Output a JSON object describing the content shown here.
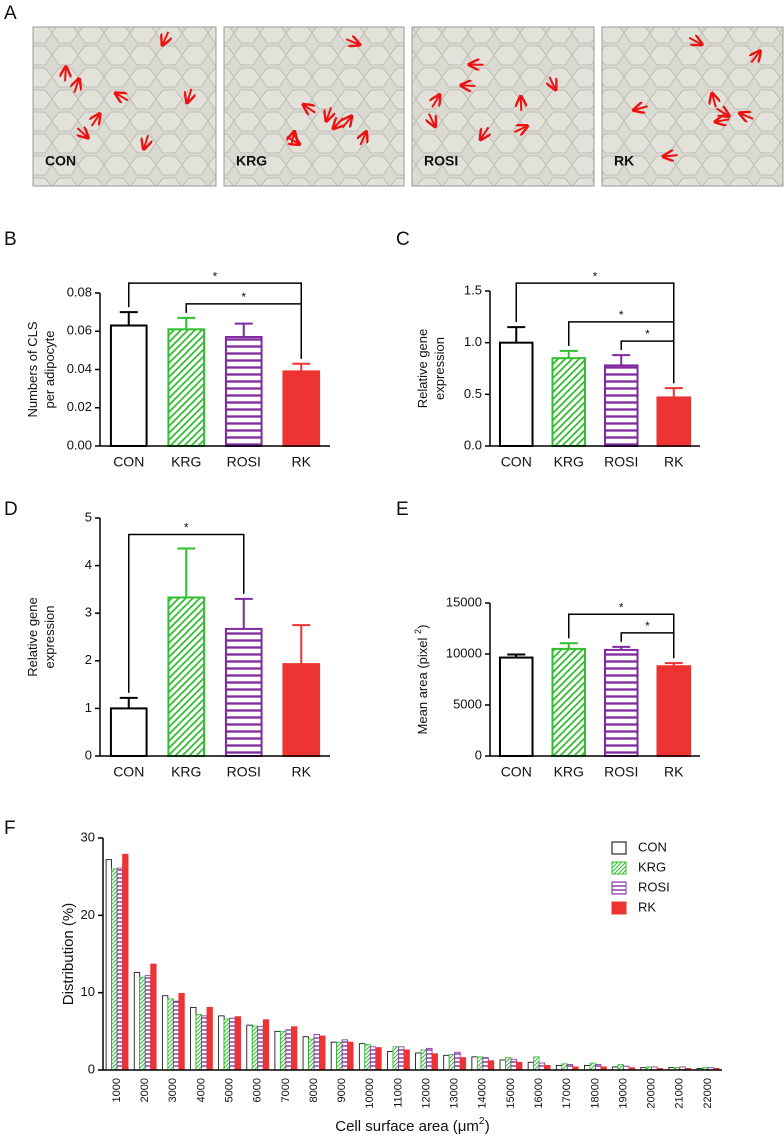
{
  "panel_a": {
    "letter": "A",
    "images": [
      "CON",
      "KRG",
      "ROSI",
      "RK"
    ]
  },
  "chart_data": [
    {
      "type": "bar",
      "panel": "B",
      "ylabel": [
        "Numbers of  CLS",
        "per adipocyte"
      ],
      "categories": [
        "CON",
        "KRG",
        "ROSI",
        "RK"
      ],
      "values": [
        0.063,
        0.061,
        0.057,
        0.039
      ],
      "errors": [
        0.007,
        0.006,
        0.007,
        0.004
      ],
      "colors": [
        "#000000",
        "#2fbf2f",
        "#7f2a9f",
        "#ee3333"
      ],
      "patterns": [
        "none",
        "diagonal",
        "horizontal",
        "solid"
      ],
      "ylim": [
        0,
        0.08
      ],
      "yticks": [
        {
          "value": 0,
          "label": "0.00"
        },
        {
          "value": 0.02,
          "label": "0.02"
        },
        {
          "value": 0.04,
          "label": "0.04"
        },
        {
          "value": 0.06,
          "label": "0.06"
        },
        {
          "value": 0.08,
          "label": "0.08"
        }
      ],
      "significance": [
        {
          "between": [
            "CON",
            "RK"
          ],
          "label": "*"
        },
        {
          "between": [
            "KRG",
            "RK"
          ],
          "label": "*"
        }
      ]
    },
    {
      "type": "bar",
      "panel": "C",
      "ylabel": [
        "Relative gene",
        "expression"
      ],
      "categories": [
        "CON",
        "KRG",
        "ROSI",
        "RK"
      ],
      "values": [
        1.0,
        0.85,
        0.78,
        0.47
      ],
      "errors": [
        0.15,
        0.07,
        0.1,
        0.09
      ],
      "colors": [
        "#000000",
        "#2fbf2f",
        "#7f2a9f",
        "#ee3333"
      ],
      "patterns": [
        "none",
        "diagonal",
        "horizontal",
        "solid"
      ],
      "ylim": [
        0,
        1.5
      ],
      "yticks": [
        {
          "value": 0,
          "label": "0.0"
        },
        0.5,
        {
          "value": 1,
          "label": "1.0"
        },
        1.5
      ],
      "significance": [
        {
          "between": [
            "CON",
            "RK"
          ],
          "label": "*"
        },
        {
          "between": [
            "KRG",
            "RK"
          ],
          "label": "*"
        },
        {
          "between": [
            "ROSI",
            "RK"
          ],
          "label": "*"
        }
      ]
    },
    {
      "type": "bar",
      "panel": "D",
      "ylabel": [
        "Relative gene",
        "expression"
      ],
      "categories": [
        "CON",
        "KRG",
        "ROSI",
        "RK"
      ],
      "values": [
        1.0,
        3.33,
        2.67,
        1.93
      ],
      "errors": [
        0.22,
        1.03,
        0.63,
        0.82
      ],
      "colors": [
        "#000000",
        "#2fbf2f",
        "#7f2a9f",
        "#ee3333"
      ],
      "patterns": [
        "none",
        "diagonal",
        "horizontal",
        "solid"
      ],
      "ylim": [
        0,
        5
      ],
      "yticks": [
        0,
        1,
        2,
        3,
        4,
        5
      ],
      "significance": [
        {
          "between": [
            "CON",
            "ROSI"
          ],
          "label": "*"
        }
      ]
    },
    {
      "type": "bar",
      "panel": "E",
      "ylabel": {
        "main": "Mean area (pixel ",
        "sup": "2",
        "end": ")"
      },
      "categories": [
        "CON",
        "KRG",
        "ROSI",
        "RK"
      ],
      "values": [
        9650,
        10500,
        10400,
        8800
      ],
      "errors": [
        300,
        550,
        300,
        300
      ],
      "colors": [
        "#000000",
        "#2fbf2f",
        "#7f2a9f",
        "#ee3333"
      ],
      "patterns": [
        "none",
        "diagonal",
        "horizontal",
        "solid"
      ],
      "ylim": [
        0,
        15000
      ],
      "yticks": [
        0,
        5000,
        10000,
        15000
      ],
      "significance": [
        {
          "between": [
            "KRG",
            "RK"
          ],
          "label": "*"
        },
        {
          "between": [
            "ROSI",
            "RK"
          ],
          "label": "*"
        }
      ]
    },
    {
      "type": "grouped_bar",
      "panel": "F",
      "ylabel": "Distribution (%)",
      "xlabel": {
        "main": "Cell surface area (μm",
        "sup": "2",
        "end": ")"
      },
      "categories": [
        "1000",
        "2000",
        "3000",
        "4000",
        "5000",
        "6000",
        "7000",
        "8000",
        "9000",
        "10000",
        "11000",
        "12000",
        "13000",
        "14000",
        "15000",
        "16000",
        "17000",
        "18000",
        "19000",
        "20000",
        "21000",
        "22000"
      ],
      "series": [
        {
          "name": "CON",
          "color": "#000000",
          "pattern": "none",
          "values": [
            27.2,
            12.6,
            9.6,
            8.1,
            7.0,
            5.8,
            5.0,
            4.3,
            3.6,
            3.4,
            2.4,
            2.2,
            1.9,
            1.7,
            1.3,
            1.0,
            0.6,
            0.6,
            0.4,
            0.3,
            0.3,
            0.2
          ]
        },
        {
          "name": "KRG",
          "color": "#2fbf2f",
          "pattern": "diagonal",
          "values": [
            26.0,
            12.0,
            9.2,
            7.2,
            6.6,
            5.7,
            5.0,
            4.0,
            3.6,
            3.3,
            3.0,
            2.6,
            2.0,
            1.7,
            1.6,
            1.7,
            0.8,
            0.9,
            0.7,
            0.4,
            0.3,
            0.3
          ]
        },
        {
          "name": "ROSI",
          "color": "#7f2a9f",
          "pattern": "horizontal",
          "values": [
            26.1,
            12.2,
            8.9,
            7.0,
            6.7,
            5.6,
            5.2,
            4.6,
            3.9,
            3.0,
            3.0,
            2.8,
            2.3,
            1.6,
            1.4,
            0.9,
            0.7,
            0.7,
            0.5,
            0.4,
            0.4,
            0.3
          ]
        },
        {
          "name": "RK",
          "color": "#ee3333",
          "pattern": "solid",
          "values": [
            27.9,
            13.7,
            9.9,
            8.1,
            6.9,
            6.5,
            5.6,
            4.4,
            3.6,
            2.9,
            2.6,
            2.1,
            1.6,
            1.2,
            1.0,
            0.6,
            0.4,
            0.4,
            0.3,
            0.2,
            0.2,
            0.2
          ]
        }
      ],
      "ylim": [
        0,
        30
      ],
      "yticks": [
        0,
        10,
        20,
        30
      ],
      "legend": "top-right"
    }
  ]
}
